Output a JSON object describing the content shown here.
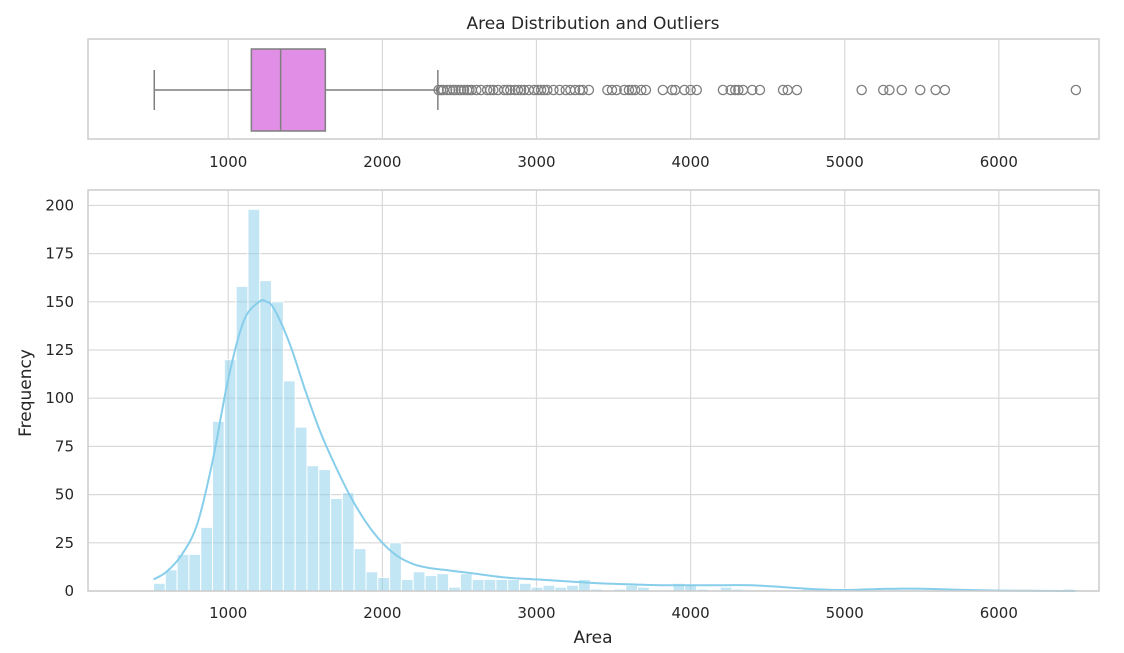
{
  "chart_data": [
    {
      "type": "box",
      "title": "Area Distribution and Outliers",
      "xlabel": "",
      "xlim": [
        90,
        6650
      ],
      "xticks": [
        1000,
        2000,
        3000,
        4000,
        5000,
        6000
      ],
      "xtick_labels": [
        "1000",
        "2000",
        "3000",
        "4000",
        "5000",
        "6000"
      ],
      "grid": true,
      "box_color": "#e08ee6",
      "line_color": "#7f7f7f",
      "stats": {
        "whisker_low": 520,
        "q1": 1150,
        "median": 1340,
        "q3": 1630,
        "whisker_high": 2360
      },
      "outliers": [
        2365,
        2380,
        2395,
        2420,
        2440,
        2460,
        2475,
        2495,
        2510,
        2530,
        2550,
        2565,
        2580,
        2610,
        2640,
        2680,
        2700,
        2720,
        2750,
        2790,
        2810,
        2830,
        2860,
        2880,
        2900,
        2920,
        2950,
        2985,
        3010,
        3030,
        3050,
        3070,
        3110,
        3150,
        3190,
        3220,
        3250,
        3280,
        3300,
        3340,
        3460,
        3490,
        3520,
        3570,
        3600,
        3620,
        3640,
        3680,
        3710,
        3820,
        3880,
        3900,
        3960,
        4000,
        4040,
        4210,
        4260,
        4290,
        4310,
        4340,
        4400,
        4450,
        4600,
        4630,
        4690,
        5110,
        5250,
        5290,
        5370,
        5490,
        5590,
        5650,
        6500
      ]
    },
    {
      "type": "histogram",
      "title": "",
      "xlabel": "Area",
      "ylabel": "Frequency",
      "xlim": [
        90,
        6650
      ],
      "ylim": [
        0,
        208
      ],
      "xticks": [
        1000,
        2000,
        3000,
        4000,
        5000,
        6000
      ],
      "xtick_labels": [
        "1000",
        "2000",
        "3000",
        "4000",
        "5000",
        "6000"
      ],
      "yticks": [
        0,
        25,
        50,
        75,
        100,
        125,
        150,
        175,
        200
      ],
      "ytick_labels": [
        "0",
        "25",
        "50",
        "75",
        "100",
        "125",
        "150",
        "175",
        "200"
      ],
      "grid": true,
      "bar_color": "#87ceeb",
      "kde_color": "#87ceeb",
      "bin_start": 515,
      "bin_width": 76.6,
      "counts": [
        4,
        11,
        19,
        19,
        33,
        88,
        120,
        158,
        198,
        161,
        150,
        109,
        85,
        65,
        63,
        48,
        51,
        22,
        10,
        7,
        25,
        6,
        10,
        8,
        9,
        2,
        9,
        6,
        6,
        6,
        6,
        4,
        2,
        3,
        2,
        3,
        6,
        1,
        0,
        1,
        3,
        2,
        0,
        0,
        4,
        3,
        1,
        0,
        2,
        1,
        0,
        0,
        0,
        0,
        0,
        1,
        1,
        1,
        1,
        0,
        0,
        0,
        0,
        0,
        0,
        0,
        0,
        0,
        0,
        0,
        0,
        0,
        0,
        0,
        0,
        0,
        0,
        1
      ],
      "kde": {
        "x": [
          515,
          600,
          700,
          800,
          900,
          1000,
          1100,
          1200,
          1250,
          1300,
          1400,
          1500,
          1600,
          1700,
          1800,
          1900,
          2000,
          2100,
          2200,
          2300,
          2400,
          2500,
          2600,
          2800,
          3000,
          3200,
          3400,
          3600,
          3800,
          4000,
          4200,
          4400,
          4600,
          4800,
          5000,
          5200,
          5400,
          5600,
          5800,
          6000,
          6200,
          6400,
          6500
        ],
        "y": [
          6,
          10,
          19,
          35,
          68,
          110,
          140,
          150,
          150,
          146,
          128,
          104,
          82,
          64,
          48,
          35,
          25,
          18,
          14,
          12,
          11,
          10,
          9,
          7,
          6,
          5,
          4,
          3.5,
          3,
          3,
          3,
          3,
          2,
          1,
          0.5,
          1,
          1.2,
          1,
          0.5,
          0.2,
          0.1,
          0,
          0
        ]
      }
    }
  ]
}
